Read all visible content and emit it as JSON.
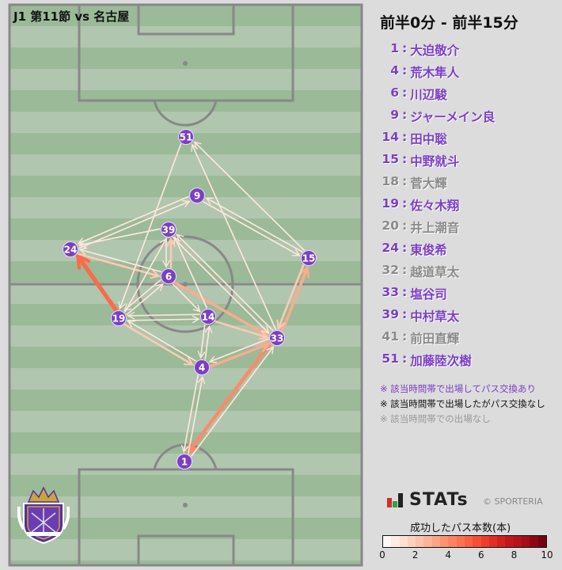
{
  "match_title": "J1 第11節 vs 名古屋",
  "period": "前半0分 - 前半15分",
  "players": [
    {
      "num": "1",
      "name": "大迫敬介",
      "status": "played"
    },
    {
      "num": "4",
      "name": "荒木隼人",
      "status": "played"
    },
    {
      "num": "6",
      "name": "川辺駿",
      "status": "played"
    },
    {
      "num": "9",
      "name": "ジャーメイン良",
      "status": "played"
    },
    {
      "num": "14",
      "name": "田中聡",
      "status": "played"
    },
    {
      "num": "15",
      "name": "中野就斗",
      "status": "played"
    },
    {
      "num": "18",
      "name": "菅大輝",
      "status": "absent"
    },
    {
      "num": "19",
      "name": "佐々木翔",
      "status": "played"
    },
    {
      "num": "20",
      "name": "井上潮音",
      "status": "absent"
    },
    {
      "num": "24",
      "name": "東俊希",
      "status": "played"
    },
    {
      "num": "32",
      "name": "越道草太",
      "status": "absent"
    },
    {
      "num": "33",
      "name": "塩谷司",
      "status": "played"
    },
    {
      "num": "39",
      "name": "中村草太",
      "status": "played"
    },
    {
      "num": "41",
      "name": "前田直輝",
      "status": "absent"
    },
    {
      "num": "51",
      "name": "加藤陸次樹",
      "status": "played"
    }
  ],
  "notes": [
    {
      "text": "※ 該当時間帯で出場してパス交換あり",
      "color": "#7b3fc4"
    },
    {
      "text": "※ 該当時間帯で出場したがパス交換なし",
      "color": "#111111"
    },
    {
      "text": "※ 該当時間帯での出場なし",
      "color": "#999999"
    }
  ],
  "colors": {
    "played": "#7b3fc4",
    "absent": "#8a8a8a",
    "node": "#7b3fc4",
    "pitch_dark": "#9aba98",
    "pitch_light": "#b0c6ae",
    "lines": "#888888"
  },
  "brand": {
    "logo_text": "STATs",
    "copyright": "© SPORTERIA",
    "club_crest": "SANFRECCE HIROSHIMA"
  },
  "colorbar": {
    "title": "成功したパス本数(本)",
    "min": 0,
    "max": 10,
    "ticks": [
      "0",
      "2",
      "4",
      "6",
      "8",
      "10"
    ]
  },
  "passes": [
    {
      "from": "19",
      "to": "24",
      "count": 5
    },
    {
      "from": "33",
      "to": "1",
      "count": 4
    },
    {
      "from": "4",
      "to": "33",
      "count": 3
    },
    {
      "from": "33",
      "to": "15",
      "count": 3
    },
    {
      "from": "15",
      "to": "33",
      "count": 2
    },
    {
      "from": "6",
      "to": "33",
      "count": 3
    },
    {
      "from": "14",
      "to": "33",
      "count": 2
    },
    {
      "from": "19",
      "to": "4",
      "count": 2
    },
    {
      "from": "4",
      "to": "19",
      "count": 1
    },
    {
      "from": "24",
      "to": "6",
      "count": 2
    },
    {
      "from": "6",
      "to": "24",
      "count": 1
    },
    {
      "from": "1",
      "to": "4",
      "count": 1
    },
    {
      "from": "4",
      "to": "1",
      "count": 1
    },
    {
      "from": "9",
      "to": "24",
      "count": 1
    },
    {
      "from": "24",
      "to": "9",
      "count": 1
    },
    {
      "from": "9",
      "to": "15",
      "count": 1
    },
    {
      "from": "15",
      "to": "9",
      "count": 1
    },
    {
      "from": "39",
      "to": "24",
      "count": 1
    },
    {
      "from": "39",
      "to": "6",
      "count": 1
    },
    {
      "from": "6",
      "to": "39",
      "count": 2
    },
    {
      "from": "39",
      "to": "33",
      "count": 1
    },
    {
      "from": "33",
      "to": "39",
      "count": 1
    },
    {
      "from": "14",
      "to": "39",
      "count": 1
    },
    {
      "from": "19",
      "to": "6",
      "count": 1
    },
    {
      "from": "6",
      "to": "19",
      "count": 1
    },
    {
      "from": "14",
      "to": "19",
      "count": 1
    },
    {
      "from": "19",
      "to": "14",
      "count": 1
    },
    {
      "from": "4",
      "to": "14",
      "count": 1
    },
    {
      "from": "14",
      "to": "4",
      "count": 1
    },
    {
      "from": "33",
      "to": "4",
      "count": 1
    },
    {
      "from": "33",
      "to": "51",
      "count": 1
    },
    {
      "from": "15",
      "to": "51",
      "count": 1
    },
    {
      "from": "51",
      "to": "19",
      "count": 1
    },
    {
      "from": "19",
      "to": "39",
      "count": 1
    },
    {
      "from": "6",
      "to": "14",
      "count": 1
    },
    {
      "from": "1",
      "to": "33",
      "count": 1
    }
  ]
}
